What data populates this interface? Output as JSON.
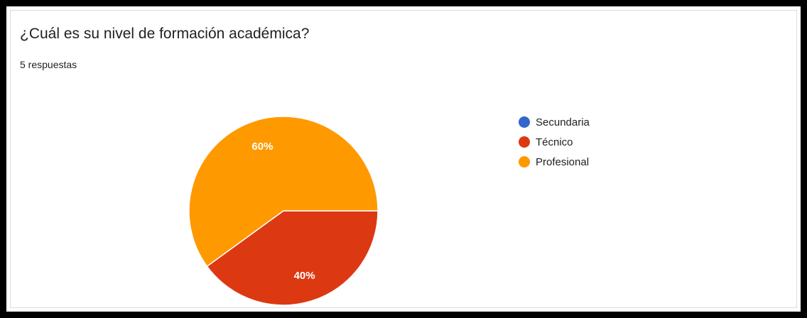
{
  "title": "¿Cuál es su nivel de formación académica?",
  "subtitle": "5 respuestas",
  "chart_data": {
    "type": "pie",
    "title": "¿Cuál es su nivel de formación académica?",
    "categories": [
      "Secundaria",
      "Técnico",
      "Profesional"
    ],
    "values": [
      0,
      40,
      60
    ],
    "data_labels": [
      "",
      "40%",
      "60%"
    ],
    "colors": [
      "#3366cc",
      "#dc3912",
      "#ff9900"
    ],
    "legend_position": "right"
  }
}
